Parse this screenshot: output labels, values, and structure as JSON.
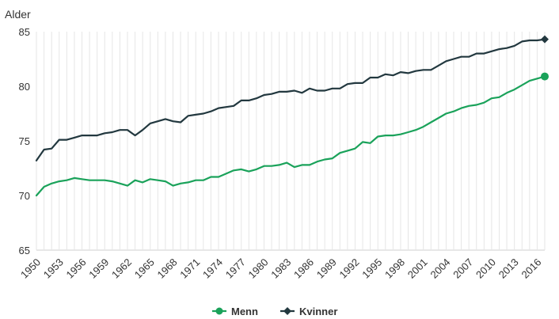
{
  "chart_data": {
    "type": "line",
    "title": "",
    "xlabel": "",
    "ylabel": "Alder",
    "ylim": [
      65,
      85
    ],
    "yticks": [
      65,
      70,
      75,
      80,
      85
    ],
    "xlim": [
      1950,
      2017
    ],
    "xticks": [
      1950,
      1953,
      1956,
      1959,
      1962,
      1965,
      1968,
      1971,
      1974,
      1977,
      1980,
      1983,
      1986,
      1989,
      1992,
      1995,
      1998,
      2001,
      2004,
      2007,
      2010,
      2013,
      2016
    ],
    "grid": "vertical",
    "legend_position": "bottom-center",
    "x": [
      1950,
      1951,
      1952,
      1953,
      1954,
      1955,
      1956,
      1957,
      1958,
      1959,
      1960,
      1961,
      1962,
      1963,
      1964,
      1965,
      1966,
      1967,
      1968,
      1969,
      1970,
      1971,
      1972,
      1973,
      1974,
      1975,
      1976,
      1977,
      1978,
      1979,
      1980,
      1981,
      1982,
      1983,
      1984,
      1985,
      1986,
      1987,
      1988,
      1989,
      1990,
      1991,
      1992,
      1993,
      1994,
      1995,
      1996,
      1997,
      1998,
      1999,
      2000,
      2001,
      2002,
      2003,
      2004,
      2005,
      2006,
      2007,
      2008,
      2009,
      2010,
      2011,
      2012,
      2013,
      2014,
      2015,
      2016,
      2017
    ],
    "series": [
      {
        "name": "Menn",
        "color": "#1aa25a",
        "marker": "circle",
        "values": [
          70.0,
          70.8,
          71.1,
          71.3,
          71.4,
          71.6,
          71.5,
          71.4,
          71.4,
          71.4,
          71.3,
          71.1,
          70.9,
          71.4,
          71.2,
          71.5,
          71.4,
          71.3,
          70.9,
          71.1,
          71.2,
          71.4,
          71.4,
          71.7,
          71.7,
          72.0,
          72.3,
          72.4,
          72.2,
          72.4,
          72.7,
          72.7,
          72.8,
          73.0,
          72.6,
          72.8,
          72.8,
          73.1,
          73.3,
          73.4,
          73.9,
          74.1,
          74.3,
          74.9,
          74.8,
          75.4,
          75.5,
          75.5,
          75.6,
          75.8,
          76.0,
          76.3,
          76.7,
          77.1,
          77.5,
          77.7,
          78.0,
          78.2,
          78.3,
          78.5,
          78.9,
          79.0,
          79.4,
          79.7,
          80.1,
          80.5,
          80.7,
          80.9
        ]
      },
      {
        "name": "Kvinner",
        "color": "#22383f",
        "marker": "diamond",
        "values": [
          73.2,
          74.2,
          74.3,
          75.1,
          75.1,
          75.3,
          75.5,
          75.5,
          75.5,
          75.7,
          75.8,
          76.0,
          76.0,
          75.5,
          76.0,
          76.6,
          76.8,
          77.0,
          76.8,
          76.7,
          77.3,
          77.4,
          77.5,
          77.7,
          78.0,
          78.1,
          78.2,
          78.7,
          78.7,
          78.9,
          79.2,
          79.3,
          79.5,
          79.5,
          79.6,
          79.4,
          79.8,
          79.6,
          79.6,
          79.8,
          79.8,
          80.2,
          80.3,
          80.3,
          80.8,
          80.8,
          81.1,
          81.0,
          81.3,
          81.2,
          81.4,
          81.5,
          81.5,
          81.9,
          82.3,
          82.5,
          82.7,
          82.7,
          83.0,
          83.0,
          83.2,
          83.4,
          83.5,
          83.7,
          84.1,
          84.2,
          84.2,
          84.3
        ]
      }
    ]
  }
}
